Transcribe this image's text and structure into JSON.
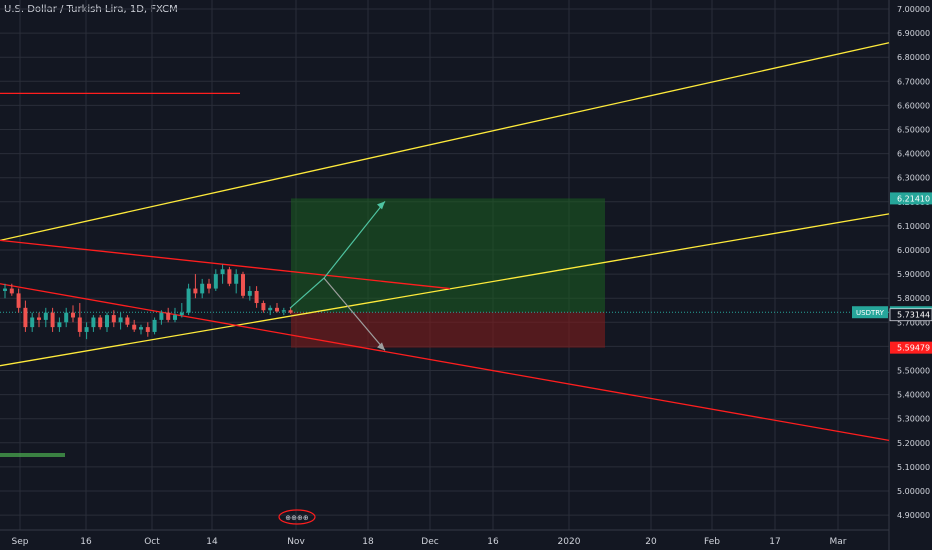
{
  "header": {
    "title": "U.S. Dollar / Turkish Lira, 1D, FXCM"
  },
  "events_badge": "⊕⊕⊕⊕",
  "colors": {
    "background": "#131722",
    "grid": "#2a2e39",
    "axis_text": "#d1d4dc",
    "up_candle": "#26a69a",
    "down_candle": "#ef5350",
    "trend_yellow": "#ffeb3b",
    "trend_red": "#ff1e1e",
    "profit_zone": "#1b5e20",
    "loss_zone": "#7f1d1d",
    "tag_green": "#26a69a",
    "tag_red": "#ff1e1e"
  },
  "chart_data": {
    "type": "candlestick",
    "symbol": "USDTRY",
    "timeframe": "1D",
    "y_axis": {
      "ylim": [
        4.86,
        7.03
      ],
      "ticks": [
        "7.00000",
        "6.90000",
        "6.80000",
        "6.70000",
        "6.60000",
        "6.50000",
        "6.40000",
        "6.30000",
        "6.20000",
        "6.10000",
        "6.00000",
        "5.90000",
        "5.80000",
        "5.70000",
        "5.60000",
        "5.50000",
        "5.40000",
        "5.30000",
        "5.20000",
        "5.10000",
        "5.00000",
        "4.90000"
      ]
    },
    "x_axis": {
      "ticks": [
        "Sep",
        "16",
        "Oct",
        "14",
        "Nov",
        "18",
        "Dec",
        "16",
        "2020",
        "20",
        "Feb",
        "17",
        "Mar"
      ]
    },
    "price_labels": [
      {
        "label": "",
        "value": "6.21410"
      },
      {
        "label": "USDTRY",
        "value": "5.74182"
      },
      {
        "label": "",
        "value": "5.73144"
      },
      {
        "label": "",
        "value": "5.59479"
      }
    ],
    "candles": [
      [
        5.83,
        5.86,
        5.8,
        5.84
      ],
      [
        5.84,
        5.86,
        5.81,
        5.82
      ],
      [
        5.82,
        5.84,
        5.74,
        5.76
      ],
      [
        5.76,
        5.79,
        5.66,
        5.68
      ],
      [
        5.68,
        5.74,
        5.66,
        5.72
      ],
      [
        5.72,
        5.74,
        5.68,
        5.71
      ],
      [
        5.71,
        5.76,
        5.68,
        5.74
      ],
      [
        5.74,
        5.76,
        5.66,
        5.68
      ],
      [
        5.68,
        5.72,
        5.66,
        5.7
      ],
      [
        5.7,
        5.76,
        5.68,
        5.74
      ],
      [
        5.74,
        5.77,
        5.7,
        5.72
      ],
      [
        5.72,
        5.78,
        5.64,
        5.66
      ],
      [
        5.66,
        5.7,
        5.63,
        5.68
      ],
      [
        5.68,
        5.73,
        5.66,
        5.72
      ],
      [
        5.72,
        5.73,
        5.67,
        5.68
      ],
      [
        5.68,
        5.74,
        5.66,
        5.73
      ],
      [
        5.73,
        5.75,
        5.68,
        5.7
      ],
      [
        5.7,
        5.74,
        5.67,
        5.72
      ],
      [
        5.72,
        5.73,
        5.68,
        5.69
      ],
      [
        5.69,
        5.71,
        5.66,
        5.67
      ],
      [
        5.67,
        5.69,
        5.65,
        5.68
      ],
      [
        5.68,
        5.7,
        5.64,
        5.66
      ],
      [
        5.66,
        5.72,
        5.65,
        5.71
      ],
      [
        5.71,
        5.75,
        5.69,
        5.74
      ],
      [
        5.74,
        5.76,
        5.7,
        5.71
      ],
      [
        5.71,
        5.76,
        5.7,
        5.73
      ],
      [
        5.73,
        5.78,
        5.72,
        5.74
      ],
      [
        5.74,
        5.86,
        5.73,
        5.84
      ],
      [
        5.84,
        5.9,
        5.8,
        5.82
      ],
      [
        5.82,
        5.88,
        5.8,
        5.86
      ],
      [
        5.86,
        5.88,
        5.82,
        5.84
      ],
      [
        5.84,
        5.92,
        5.83,
        5.9
      ],
      [
        5.9,
        5.94,
        5.86,
        5.92
      ],
      [
        5.92,
        5.93,
        5.85,
        5.86
      ],
      [
        5.86,
        5.92,
        5.82,
        5.9
      ],
      [
        5.9,
        5.91,
        5.8,
        5.81
      ],
      [
        5.81,
        5.85,
        5.79,
        5.83
      ],
      [
        5.83,
        5.85,
        5.76,
        5.78
      ],
      [
        5.78,
        5.79,
        5.74,
        5.75
      ],
      [
        5.75,
        5.77,
        5.73,
        5.76
      ],
      [
        5.76,
        5.78,
        5.74,
        5.745
      ],
      [
        5.745,
        5.76,
        5.73,
        5.75
      ],
      [
        5.75,
        5.76,
        5.735,
        5.74
      ]
    ],
    "trend_lines": [
      {
        "color": "yellow",
        "from": [
          0,
          6.04
        ],
        "to": [
          889,
          6.86
        ]
      },
      {
        "color": "yellow",
        "from": [
          0,
          5.52
        ],
        "to": [
          889,
          6.15
        ]
      },
      {
        "color": "red",
        "from": [
          0,
          6.04
        ],
        "to": [
          450,
          5.84
        ]
      },
      {
        "color": "red",
        "from": [
          0,
          5.86
        ],
        "to": [
          889,
          5.21
        ]
      },
      {
        "color": "red",
        "from": [
          0,
          6.65
        ],
        "to": [
          240,
          6.65
        ]
      }
    ],
    "position": {
      "entry": 5.74182,
      "target": 6.2141,
      "stop": 5.59479
    },
    "projection": {
      "pivot": 5.9,
      "up_target": 6.21,
      "down_target": 5.6
    },
    "grid": true
  }
}
